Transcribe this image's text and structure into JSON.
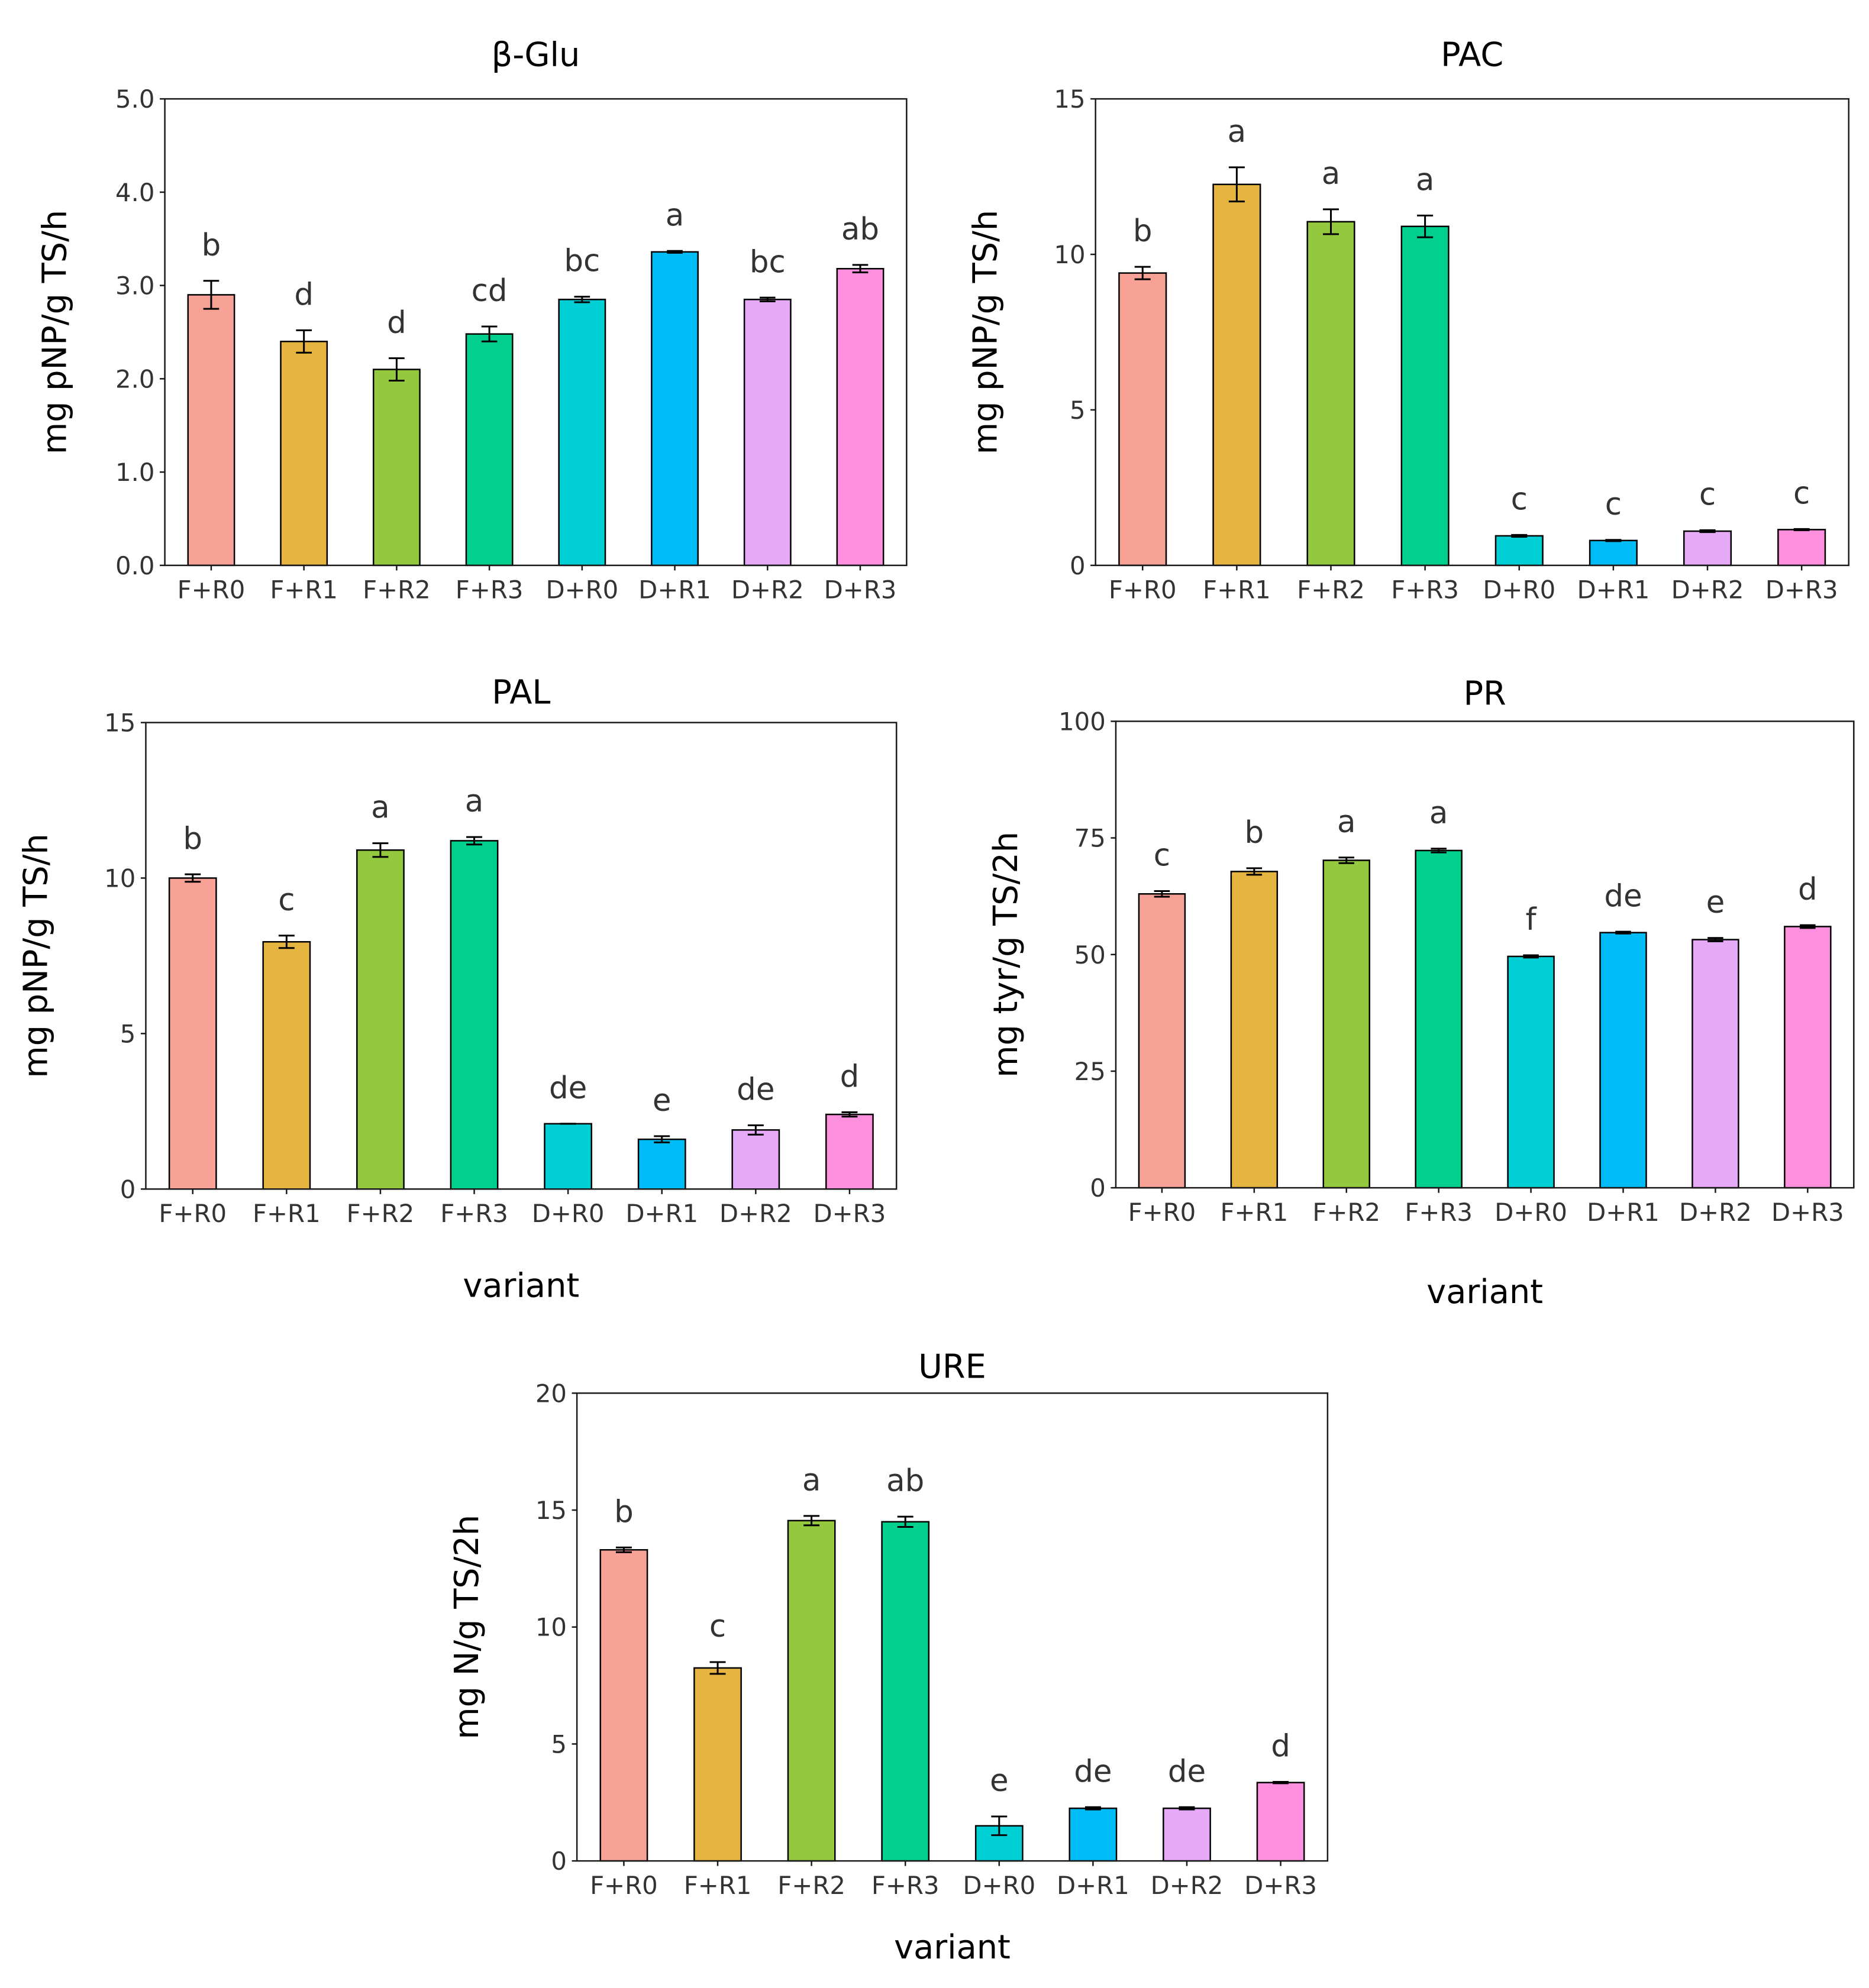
{
  "chart_data": [
    {
      "type": "bar",
      "title": "β-Glu",
      "xlabel": "",
      "ylabel": "mg pNP/g TS/h",
      "ylim": [
        0,
        5
      ],
      "yticks": [
        "0.0",
        "1.0",
        "2.0",
        "3.0",
        "4.0",
        "5.0"
      ],
      "ytick_values": [
        0,
        1,
        2,
        3,
        4,
        5
      ],
      "categories": [
        "F+R0",
        "F+R1",
        "F+R2",
        "F+R3",
        "D+R0",
        "D+R1",
        "D+R2",
        "D+R3"
      ],
      "values": [
        2.9,
        2.4,
        2.1,
        2.48,
        2.85,
        3.36,
        2.85,
        3.18
      ],
      "errors": [
        0.15,
        0.12,
        0.12,
        0.08,
        0.03,
        0.01,
        0.02,
        0.04
      ],
      "letters": [
        "b",
        "d",
        "d",
        "cd",
        "bc",
        "a",
        "bc",
        "ab"
      ],
      "grid": false
    },
    {
      "type": "bar",
      "title": "PAC",
      "xlabel": "",
      "ylabel": "mg pNP/g TS/h",
      "ylim": [
        0,
        15
      ],
      "yticks": [
        "0",
        "5",
        "10",
        "15"
      ],
      "ytick_values": [
        0,
        5,
        10,
        15
      ],
      "categories": [
        "F+R0",
        "F+R1",
        "F+R2",
        "F+R3",
        "D+R0",
        "D+R1",
        "D+R2",
        "D+R3"
      ],
      "values": [
        9.4,
        12.25,
        11.05,
        10.9,
        0.95,
        0.8,
        1.1,
        1.15
      ],
      "errors": [
        0.2,
        0.55,
        0.4,
        0.35,
        0.03,
        0.02,
        0.03,
        0.02
      ],
      "letters": [
        "b",
        "a",
        "a",
        "a",
        "c",
        "c",
        "c",
        "c"
      ],
      "grid": false
    },
    {
      "type": "bar",
      "title": "PAL",
      "xlabel": "variant",
      "ylabel": "mg pNP/g TS/h",
      "ylim": [
        0,
        15
      ],
      "yticks": [
        "0",
        "5",
        "10",
        "15"
      ],
      "ytick_values": [
        0,
        5,
        10,
        15
      ],
      "categories": [
        "F+R0",
        "F+R1",
        "F+R2",
        "F+R3",
        "D+R0",
        "D+R1",
        "D+R2",
        "D+R3"
      ],
      "values": [
        10.0,
        7.95,
        10.9,
        11.2,
        2.1,
        1.6,
        1.9,
        2.4
      ],
      "errors": [
        0.12,
        0.2,
        0.22,
        0.12,
        0.0,
        0.1,
        0.15,
        0.07
      ],
      "letters": [
        "b",
        "c",
        "a",
        "a",
        "de",
        "e",
        "de",
        "d"
      ],
      "grid": false
    },
    {
      "type": "bar",
      "title": "PR",
      "xlabel": "variant",
      "ylabel": "mg tyr/g TS/2h",
      "ylim": [
        0,
        100
      ],
      "yticks": [
        "0",
        "25",
        "50",
        "75",
        "100"
      ],
      "ytick_values": [
        0,
        25,
        50,
        75,
        100
      ],
      "categories": [
        "F+R0",
        "F+R1",
        "F+R2",
        "F+R3",
        "D+R0",
        "D+R1",
        "D+R2",
        "D+R3"
      ],
      "values": [
        63.0,
        67.8,
        70.2,
        72.3,
        49.6,
        54.7,
        53.2,
        56.0
      ],
      "errors": [
        0.6,
        0.7,
        0.6,
        0.4,
        0.25,
        0.2,
        0.35,
        0.3
      ],
      "letters": [
        "c",
        "b",
        "a",
        "a",
        "f",
        "de",
        "e",
        "d"
      ],
      "grid": false
    },
    {
      "type": "bar",
      "title": "URE",
      "xlabel": "variant",
      "ylabel": "mg N/g TS/2h",
      "ylim": [
        0,
        20
      ],
      "yticks": [
        "0",
        "5",
        "10",
        "15",
        "20"
      ],
      "ytick_values": [
        0,
        5,
        10,
        15,
        20
      ],
      "categories": [
        "F+R0",
        "F+R1",
        "F+R2",
        "F+R3",
        "D+R0",
        "D+R1",
        "D+R2",
        "D+R3"
      ],
      "values": [
        13.3,
        8.25,
        14.55,
        14.5,
        1.5,
        2.25,
        2.25,
        3.35
      ],
      "errors": [
        0.1,
        0.25,
        0.2,
        0.22,
        0.4,
        0.05,
        0.05,
        0.03
      ],
      "letters": [
        "b",
        "c",
        "a",
        "ab",
        "e",
        "de",
        "de",
        "d"
      ],
      "grid": false
    }
  ],
  "colors": [
    "#f8a197",
    "#e6b441",
    "#94c83e",
    "#00cf8d",
    "#00cfd6",
    "#00bcf6",
    "#e6a9f7",
    "#fd8fdf"
  ],
  "styles": {
    "axis_color": "#1a1a1a",
    "text_color": "#333333",
    "bar_outline": "#000000"
  }
}
